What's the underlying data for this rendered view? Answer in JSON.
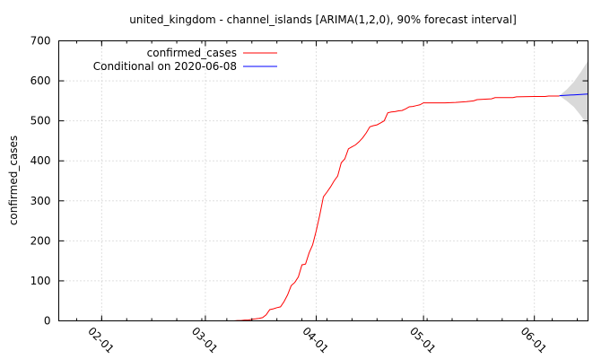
{
  "chart_data": {
    "type": "line",
    "title": "united_kingdom - channel_islands [ARIMA(1,2,0), 90% forecast interval]",
    "xlabel": "",
    "ylabel": "confirmed_cases",
    "x_axis": {
      "type": "date",
      "range": [
        "2020-01-20",
        "2020-06-16"
      ],
      "ticks": [
        {
          "date": "2020-02-01",
          "label": "02-01"
        },
        {
          "date": "2020-03-01",
          "label": "03-01"
        },
        {
          "date": "2020-04-01",
          "label": "04-01"
        },
        {
          "date": "2020-05-01",
          "label": "05-01"
        },
        {
          "date": "2020-06-01",
          "label": "06-01"
        }
      ]
    },
    "y_axis": {
      "range": [
        0,
        700
      ],
      "ticks": [
        0,
        100,
        200,
        300,
        400,
        500,
        600,
        700
      ]
    },
    "grid": true,
    "legend_position": "top-left",
    "series": [
      {
        "name": "confirmed_cases",
        "color": "#ff0000",
        "points": [
          [
            "2020-03-09",
            0
          ],
          [
            "2020-03-10",
            1
          ],
          [
            "2020-03-11",
            1
          ],
          [
            "2020-03-12",
            2
          ],
          [
            "2020-03-13",
            2
          ],
          [
            "2020-03-14",
            4
          ],
          [
            "2020-03-15",
            5
          ],
          [
            "2020-03-16",
            6
          ],
          [
            "2020-03-17",
            8
          ],
          [
            "2020-03-18",
            15
          ],
          [
            "2020-03-19",
            28
          ],
          [
            "2020-03-20",
            30
          ],
          [
            "2020-03-21",
            33
          ],
          [
            "2020-03-22",
            35
          ],
          [
            "2020-03-23",
            48
          ],
          [
            "2020-03-24",
            65
          ],
          [
            "2020-03-25",
            88
          ],
          [
            "2020-03-26",
            96
          ],
          [
            "2020-03-27",
            110
          ],
          [
            "2020-03-28",
            140
          ],
          [
            "2020-03-29",
            142
          ],
          [
            "2020-03-30",
            170
          ],
          [
            "2020-03-31",
            190
          ],
          [
            "2020-04-01",
            225
          ],
          [
            "2020-04-02",
            265
          ],
          [
            "2020-04-03",
            310
          ],
          [
            "2020-04-04",
            322
          ],
          [
            "2020-04-05",
            335
          ],
          [
            "2020-04-06",
            350
          ],
          [
            "2020-04-07",
            362
          ],
          [
            "2020-04-08",
            395
          ],
          [
            "2020-04-09",
            405
          ],
          [
            "2020-04-10",
            430
          ],
          [
            "2020-04-11",
            435
          ],
          [
            "2020-04-12",
            440
          ],
          [
            "2020-04-13",
            448
          ],
          [
            "2020-04-14",
            458
          ],
          [
            "2020-04-15",
            470
          ],
          [
            "2020-04-16",
            485
          ],
          [
            "2020-04-17",
            488
          ],
          [
            "2020-04-18",
            490
          ],
          [
            "2020-04-19",
            495
          ],
          [
            "2020-04-20",
            500
          ],
          [
            "2020-04-21",
            520
          ],
          [
            "2020-04-22",
            522
          ],
          [
            "2020-04-23",
            523
          ],
          [
            "2020-04-24",
            525
          ],
          [
            "2020-04-25",
            526
          ],
          [
            "2020-04-26",
            530
          ],
          [
            "2020-04-27",
            535
          ],
          [
            "2020-04-28",
            536
          ],
          [
            "2020-04-29",
            538
          ],
          [
            "2020-04-30",
            540
          ],
          [
            "2020-05-01",
            545
          ],
          [
            "2020-05-03",
            545
          ],
          [
            "2020-05-07",
            545
          ],
          [
            "2020-05-10",
            546
          ],
          [
            "2020-05-13",
            548
          ],
          [
            "2020-05-15",
            550
          ],
          [
            "2020-05-16",
            553
          ],
          [
            "2020-05-20",
            555
          ],
          [
            "2020-05-21",
            558
          ],
          [
            "2020-05-26",
            558
          ],
          [
            "2020-05-27",
            560
          ],
          [
            "2020-06-01",
            561
          ],
          [
            "2020-06-04",
            561
          ],
          [
            "2020-06-05",
            562
          ],
          [
            "2020-06-08",
            562
          ]
        ]
      },
      {
        "name": "Conditional on 2020-06-08",
        "color": "#0000ff",
        "points": [
          [
            "2020-06-08",
            563
          ],
          [
            "2020-06-10",
            564
          ],
          [
            "2020-06-12",
            565
          ],
          [
            "2020-06-14",
            566
          ],
          [
            "2020-06-16",
            567
          ]
        ]
      }
    ],
    "forecast_interval": {
      "level": "90%",
      "fill": "#d9d9d9",
      "lower": [
        [
          "2020-06-08",
          563
        ],
        [
          "2020-06-10",
          550
        ],
        [
          "2020-06-12",
          535
        ],
        [
          "2020-06-14",
          513
        ],
        [
          "2020-06-16",
          488
        ]
      ],
      "upper": [
        [
          "2020-06-08",
          563
        ],
        [
          "2020-06-10",
          578
        ],
        [
          "2020-06-12",
          597
        ],
        [
          "2020-06-14",
          622
        ],
        [
          "2020-06-16",
          650
        ]
      ]
    }
  }
}
